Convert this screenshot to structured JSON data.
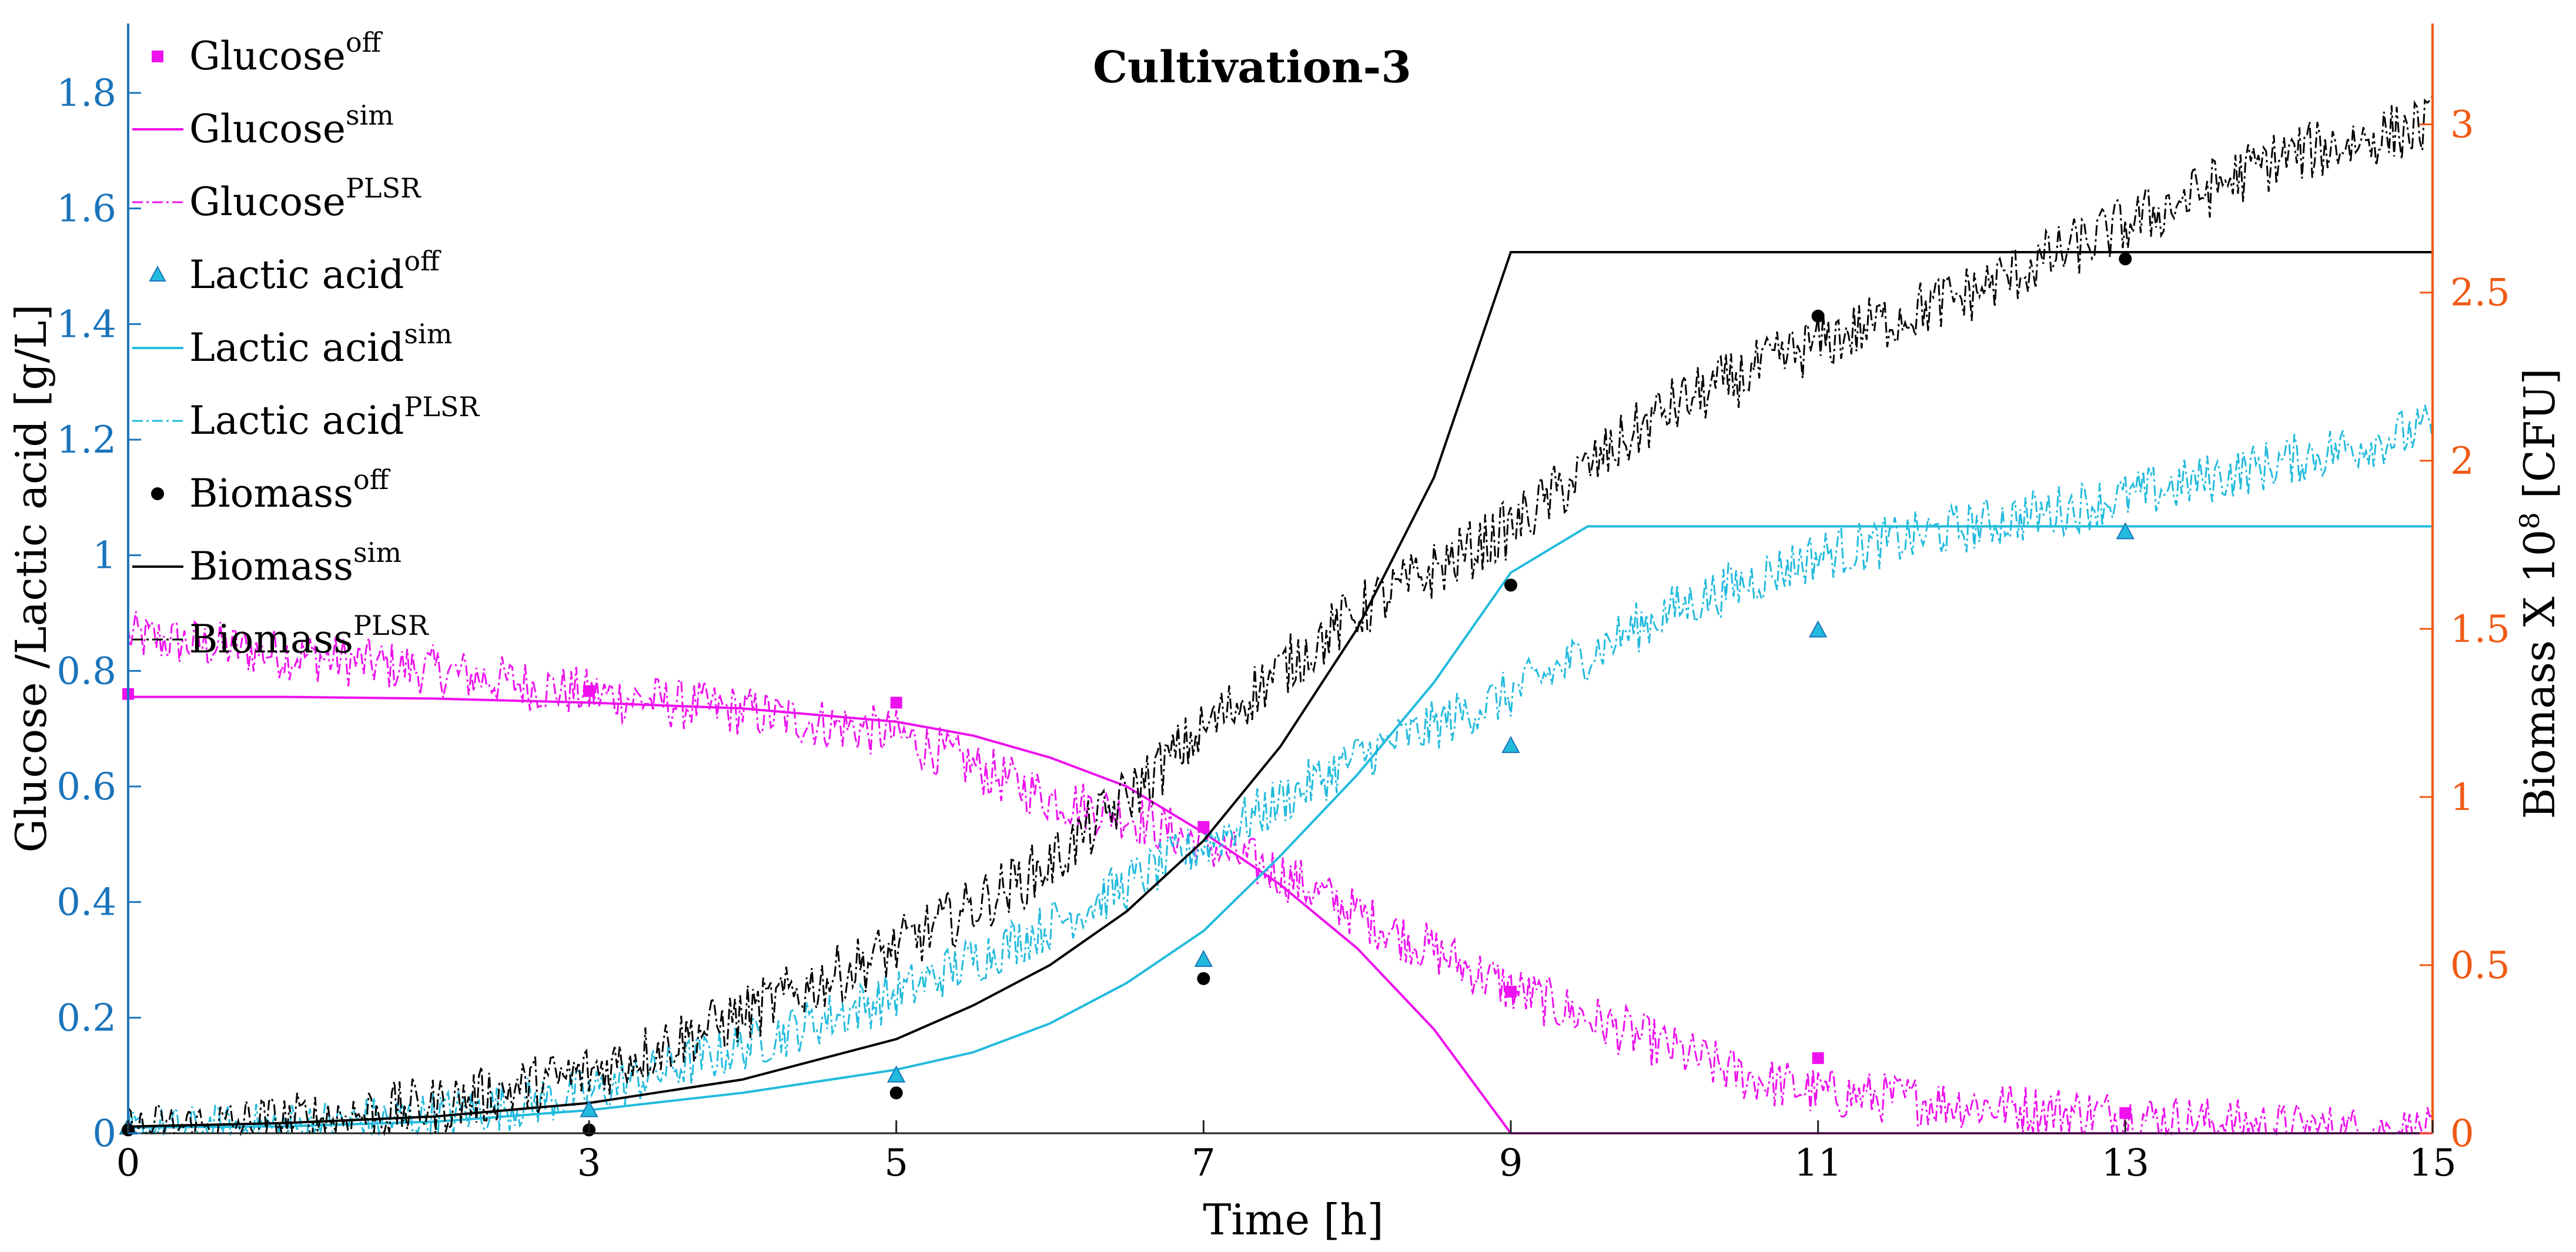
{
  "colors": {
    "magenta": "#ee11ee",
    "cyan": "#22bbdd",
    "black": "#000000",
    "left_axis": "#1a74bb",
    "right_axis": "#f05a14"
  },
  "chart_data": {
    "type": "line",
    "title": "Cultivation-3",
    "xlabel": "Time [h]",
    "ylabel_left": "Glucose /Lactic acid [g/L]",
    "ylabel_right_prefix": "Biomass X 10",
    "ylabel_right_exp": "8",
    "ylabel_right_suffix": " [CFU]",
    "xlim": [
      0,
      15
    ],
    "ylim_left": [
      0,
      1.92
    ],
    "ylim_right": [
      0,
      3.3
    ],
    "x_ticks": [
      0,
      3,
      5,
      7,
      9,
      11,
      13,
      15
    ],
    "x_tick_labels": [
      "0",
      "3",
      "5",
      "7",
      "9",
      "11",
      "13",
      "15"
    ],
    "y_left_ticks": [
      0,
      0.2,
      0.4,
      0.6,
      0.8,
      1,
      1.2,
      1.4,
      1.6,
      1.8
    ],
    "y_left_tick_labels": [
      "0",
      "0.2",
      "0.4",
      "0.6",
      "0.8",
      "1",
      "1.2",
      "1.4",
      "1.6",
      "1.8"
    ],
    "y_right_ticks": [
      0,
      0.5,
      1,
      1.5,
      2,
      2.5,
      3
    ],
    "y_right_tick_labels": [
      "0",
      "0.5",
      "1",
      "1.5",
      "2",
      "2.5",
      "3"
    ],
    "legend": [
      {
        "base": "Glucose",
        "sup": "off",
        "style": "square-marker",
        "color": "magenta"
      },
      {
        "base": "Glucose",
        "sup": "sim",
        "style": "solid",
        "color": "magenta"
      },
      {
        "base": "Glucose",
        "sup": "PLSR",
        "style": "dashdot",
        "color": "magenta"
      },
      {
        "base": "Lactic acid",
        "sup": "off",
        "style": "triangle-marker",
        "color": "cyan"
      },
      {
        "base": "Lactic acid",
        "sup": "sim",
        "style": "solid",
        "color": "cyan"
      },
      {
        "base": "Lactic acid",
        "sup": "PLSR",
        "style": "dashdot",
        "color": "cyan"
      },
      {
        "base": "Biomass",
        "sup": "off",
        "style": "circle-marker",
        "color": "black"
      },
      {
        "base": "Biomass",
        "sup": "sim",
        "style": "solid",
        "color": "black"
      },
      {
        "base": "Biomass",
        "sup": "PLSR",
        "style": "dashdot",
        "color": "black"
      }
    ],
    "series": [
      {
        "name": "Glucose off",
        "axis": "left",
        "color": "magenta",
        "marker": "square",
        "x": [
          0,
          3,
          5,
          7,
          9,
          11,
          13
        ],
        "y": [
          0.76,
          0.765,
          0.745,
          0.53,
          0.245,
          0.13,
          0.035
        ]
      },
      {
        "name": "Glucose sim",
        "axis": "left",
        "color": "magenta",
        "line": "solid",
        "x": [
          0,
          1,
          2,
          3,
          4,
          5,
          5.5,
          6,
          6.5,
          7,
          7.5,
          8,
          8.5,
          9,
          15
        ],
        "y": [
          0.755,
          0.755,
          0.752,
          0.745,
          0.735,
          0.712,
          0.688,
          0.65,
          0.6,
          0.52,
          0.43,
          0.32,
          0.18,
          0,
          0
        ]
      },
      {
        "name": "Glucose PLSR",
        "axis": "left",
        "color": "magenta",
        "line": "dashdot",
        "x": [
          0,
          1,
          2,
          3,
          4,
          5,
          6,
          6.5,
          7,
          7.5,
          8,
          9,
          10,
          10.5,
          11,
          12,
          13,
          14,
          15
        ],
        "y": [
          0.86,
          0.83,
          0.8,
          0.76,
          0.73,
          0.69,
          0.58,
          0.55,
          0.5,
          0.45,
          0.38,
          0.25,
          0.15,
          0.1,
          0.07,
          0.05,
          0.03,
          0.01,
          0.0
        ]
      },
      {
        "name": "Lactic acid off",
        "axis": "left",
        "color": "cyan",
        "marker": "triangle",
        "x": [
          0,
          3,
          5,
          7,
          9,
          11,
          13
        ],
        "y": [
          0.01,
          0.04,
          0.1,
          0.3,
          0.67,
          0.87,
          1.04
        ]
      },
      {
        "name": "Lactic acid sim",
        "axis": "left",
        "color": "cyan",
        "line": "solid",
        "x": [
          0,
          1,
          2,
          3,
          4,
          5,
          5.5,
          6,
          6.5,
          7,
          7.5,
          8,
          8.5,
          9,
          9.5,
          15
        ],
        "y": [
          0.01,
          0.012,
          0.02,
          0.04,
          0.07,
          0.11,
          0.14,
          0.19,
          0.26,
          0.35,
          0.48,
          0.62,
          0.78,
          0.97,
          1.05,
          1.05
        ]
      },
      {
        "name": "Lactic acid PLSR",
        "axis": "left",
        "color": "cyan",
        "line": "dashdot",
        "x": [
          0,
          1,
          2,
          3,
          4,
          5,
          6,
          7,
          8,
          9,
          10,
          11,
          12,
          13,
          14,
          15
        ],
        "y": [
          0.0,
          0.01,
          0.03,
          0.07,
          0.15,
          0.24,
          0.36,
          0.5,
          0.65,
          0.76,
          0.9,
          1.0,
          1.05,
          1.1,
          1.16,
          1.22
        ]
      },
      {
        "name": "Biomass off",
        "axis": "right",
        "color": "black",
        "marker": "circle",
        "x": [
          0,
          3,
          5,
          7,
          9,
          11,
          13
        ],
        "y": [
          0.01,
          0.01,
          0.12,
          0.46,
          1.63,
          2.43,
          2.6
        ]
      },
      {
        "name": "Biomass sim",
        "axis": "right",
        "color": "black",
        "line": "solid",
        "x": [
          0,
          1,
          2,
          3,
          4,
          5,
          5.5,
          6,
          6.5,
          7,
          7.5,
          8,
          8.5,
          9,
          15
        ],
        "y": [
          0.02,
          0.03,
          0.05,
          0.09,
          0.16,
          0.28,
          0.38,
          0.5,
          0.66,
          0.87,
          1.15,
          1.5,
          1.95,
          2.62,
          2.62
        ]
      },
      {
        "name": "Biomass PLSR",
        "axis": "right",
        "color": "black",
        "line": "dashdot",
        "x": [
          0,
          1,
          2,
          3,
          4,
          5,
          6,
          7,
          8,
          9,
          10,
          11,
          12,
          13,
          14,
          15
        ],
        "y": [
          0.0,
          0.03,
          0.08,
          0.18,
          0.35,
          0.55,
          0.8,
          1.2,
          1.55,
          1.8,
          2.15,
          2.35,
          2.5,
          2.7,
          2.9,
          3.0
        ]
      }
    ]
  }
}
